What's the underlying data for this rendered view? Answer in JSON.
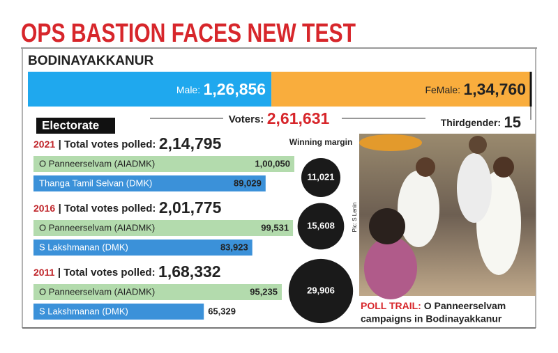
{
  "title": "OPS BASTION FACES NEW TEST",
  "constituency": "BODINAYAKKANUR",
  "electorate": {
    "heading": "Electorate",
    "male": {
      "label": "Male:",
      "value": 126856,
      "value_label": "1,26,856",
      "color": "#1fa8ee"
    },
    "female": {
      "label": "FeMale:",
      "value": 134760,
      "value_label": "1,34,760",
      "color": "#f9ad3d"
    },
    "voters": {
      "label": "Voters:",
      "value": 261631,
      "value_label": "2,61,631"
    },
    "thirdgender": {
      "label": "Thirdgender:",
      "value": 15
    }
  },
  "margin_heading": "Winning margin",
  "elections": [
    {
      "year": 2021,
      "total": {
        "label": "| Total votes polled:",
        "value": 214795,
        "value_label": "2,14,795"
      },
      "candidates": [
        {
          "name": "O Panneerselvam (AIADMK)",
          "votes": 100050,
          "votes_label": "1,00,050",
          "color": "#b3dbad"
        },
        {
          "name": "Thanga Tamil Selvan (DMK)",
          "votes": 89029,
          "votes_label": "89,029",
          "color": "#3b91d9"
        }
      ],
      "margin": {
        "value": 11021,
        "value_label": "11,021"
      }
    },
    {
      "year": 2016,
      "total": {
        "label": "| Total votes polled:",
        "value": 201775,
        "value_label": "2,01,775"
      },
      "candidates": [
        {
          "name": "O Panneerselvam (AIADMK)",
          "votes": 99531,
          "votes_label": "99,531",
          "color": "#b3dbad"
        },
        {
          "name": "S Lakshmanan (DMK)",
          "votes": 83923,
          "votes_label": "83,923",
          "color": "#3b91d9"
        }
      ],
      "margin": {
        "value": 15608,
        "value_label": "15,608"
      }
    },
    {
      "year": 2011,
      "total": {
        "label": "| Total votes polled:",
        "value": 168332,
        "value_label": "1,68,332"
      },
      "candidates": [
        {
          "name": "O Panneerselvam (AIADMK)",
          "votes": 95235,
          "votes_label": "95,235",
          "color": "#b3dbad"
        },
        {
          "name": "S Lakshmanan (DMK)",
          "votes": 65329,
          "votes_label": "65,329",
          "color": "#3b91d9"
        }
      ],
      "margin": {
        "value": 29906,
        "value_label": "29,906"
      }
    }
  ],
  "photo": {
    "credit": "Pic: S Lenin",
    "caption_lead": "POLL TRAIL:",
    "caption_lines": [
      "O Panneerselvam",
      "campaigns in Bodinayakkanur"
    ]
  }
}
